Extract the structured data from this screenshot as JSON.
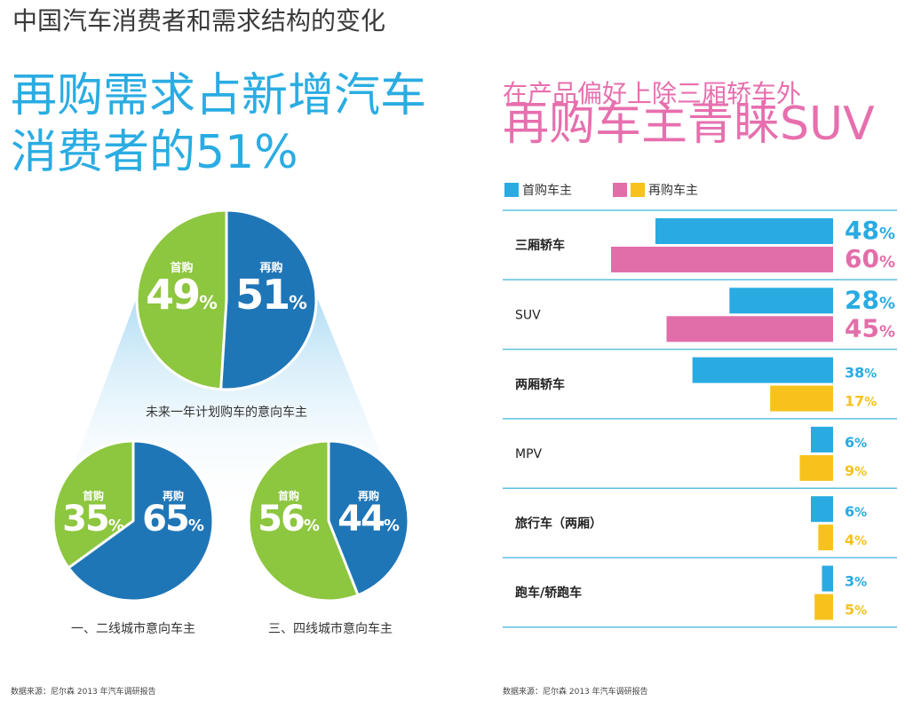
{
  "page": {
    "title": "中国汽车消费者和需求结构的变化",
    "left_headline": [
      "再购需求占新增汽车",
      "消费者的51%"
    ],
    "right_subtitle": "在产品偏好上除三厢轿车外",
    "right_title": "再购车主青睐SUV",
    "source_left": "数据来源：尼尔森 2013 年汽车调研报告",
    "source_right": "数据来源：尼尔森 2013 年汽车调研报告"
  },
  "colors": {
    "first_buyer_pie": "#8dc63f",
    "repeat_buyer_pie": "#1f76b7",
    "first_buyer_bar": "#29abe2",
    "repeat_buyer_bar_pink": "#e26ea9",
    "repeat_buyer_bar_yellow": "#f7c21b",
    "headline_blue": "#2aace2",
    "headline_pink": "#e76fae"
  },
  "chart_data": [
    {
      "type": "pie",
      "caption": "未来一年计划购车的意向车主",
      "slices": [
        {
          "name": "首购",
          "value": 49,
          "label": "49"
        },
        {
          "name": "再购",
          "value": 51,
          "label": "51"
        }
      ],
      "unit": "%"
    },
    {
      "type": "pie",
      "caption": "一、二线城市意向车主",
      "slices": [
        {
          "name": "首购",
          "value": 35,
          "label": "35"
        },
        {
          "name": "再购",
          "value": 65,
          "label": "65"
        }
      ],
      "unit": "%"
    },
    {
      "type": "pie",
      "caption": "三、四线城市意向车主",
      "slices": [
        {
          "name": "首购",
          "value": 56,
          "label": "56"
        },
        {
          "name": "再购",
          "value": 44,
          "label": "44"
        }
      ],
      "unit": "%"
    },
    {
      "type": "bar",
      "orientation": "horizontal",
      "legend": [
        "首购车主",
        "再购车主"
      ],
      "categories": [
        "三厢轿车",
        "SUV",
        "两厢轿车",
        "MPV",
        "旅行车（两厢）",
        "跑车/轿跑车"
      ],
      "series": [
        {
          "name": "首购车主",
          "values": [
            48,
            28,
            38,
            6,
            6,
            3
          ],
          "labels": [
            "48%",
            "28%",
            "38%",
            "6%",
            "6%",
            "3%"
          ]
        },
        {
          "name": "再购车主",
          "values": [
            60,
            45,
            17,
            9,
            4,
            5
          ],
          "labels": [
            "60%",
            "45%",
            "17%",
            "9%",
            "4%",
            "5%"
          ]
        }
      ],
      "xlim": [
        0,
        60
      ],
      "highlighted_categories": [
        "三厢轿车",
        "SUV"
      ]
    }
  ]
}
